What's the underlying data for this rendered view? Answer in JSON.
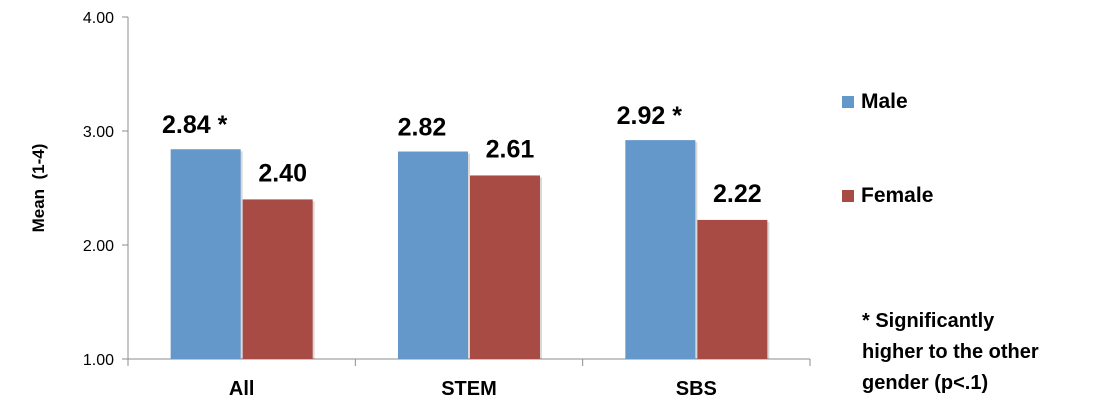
{
  "chart_data": {
    "type": "bar",
    "categories": [
      "All",
      "STEM",
      "SBS"
    ],
    "series": [
      {
        "name": "Male",
        "values": [
          2.84,
          2.82,
          2.92
        ],
        "color": "#6497CA"
      },
      {
        "name": "Female",
        "values": [
          2.4,
          2.61,
          2.22
        ],
        "color": "#A84B45"
      }
    ],
    "data_labels": [
      [
        "2.84 *",
        "2.82",
        "2.92 *"
      ],
      [
        "2.40",
        "2.61",
        "2.22"
      ]
    ],
    "ylabel": "Mean  (1-4)",
    "ylim": [
      1,
      4
    ],
    "yticks": [
      "1.00",
      "2.00",
      "3.00",
      "4.00"
    ],
    "grid": false,
    "legend_position": "right",
    "note_lines": [
      "* Significantly",
      "higher to the other",
      "gender (p<.1)"
    ]
  }
}
